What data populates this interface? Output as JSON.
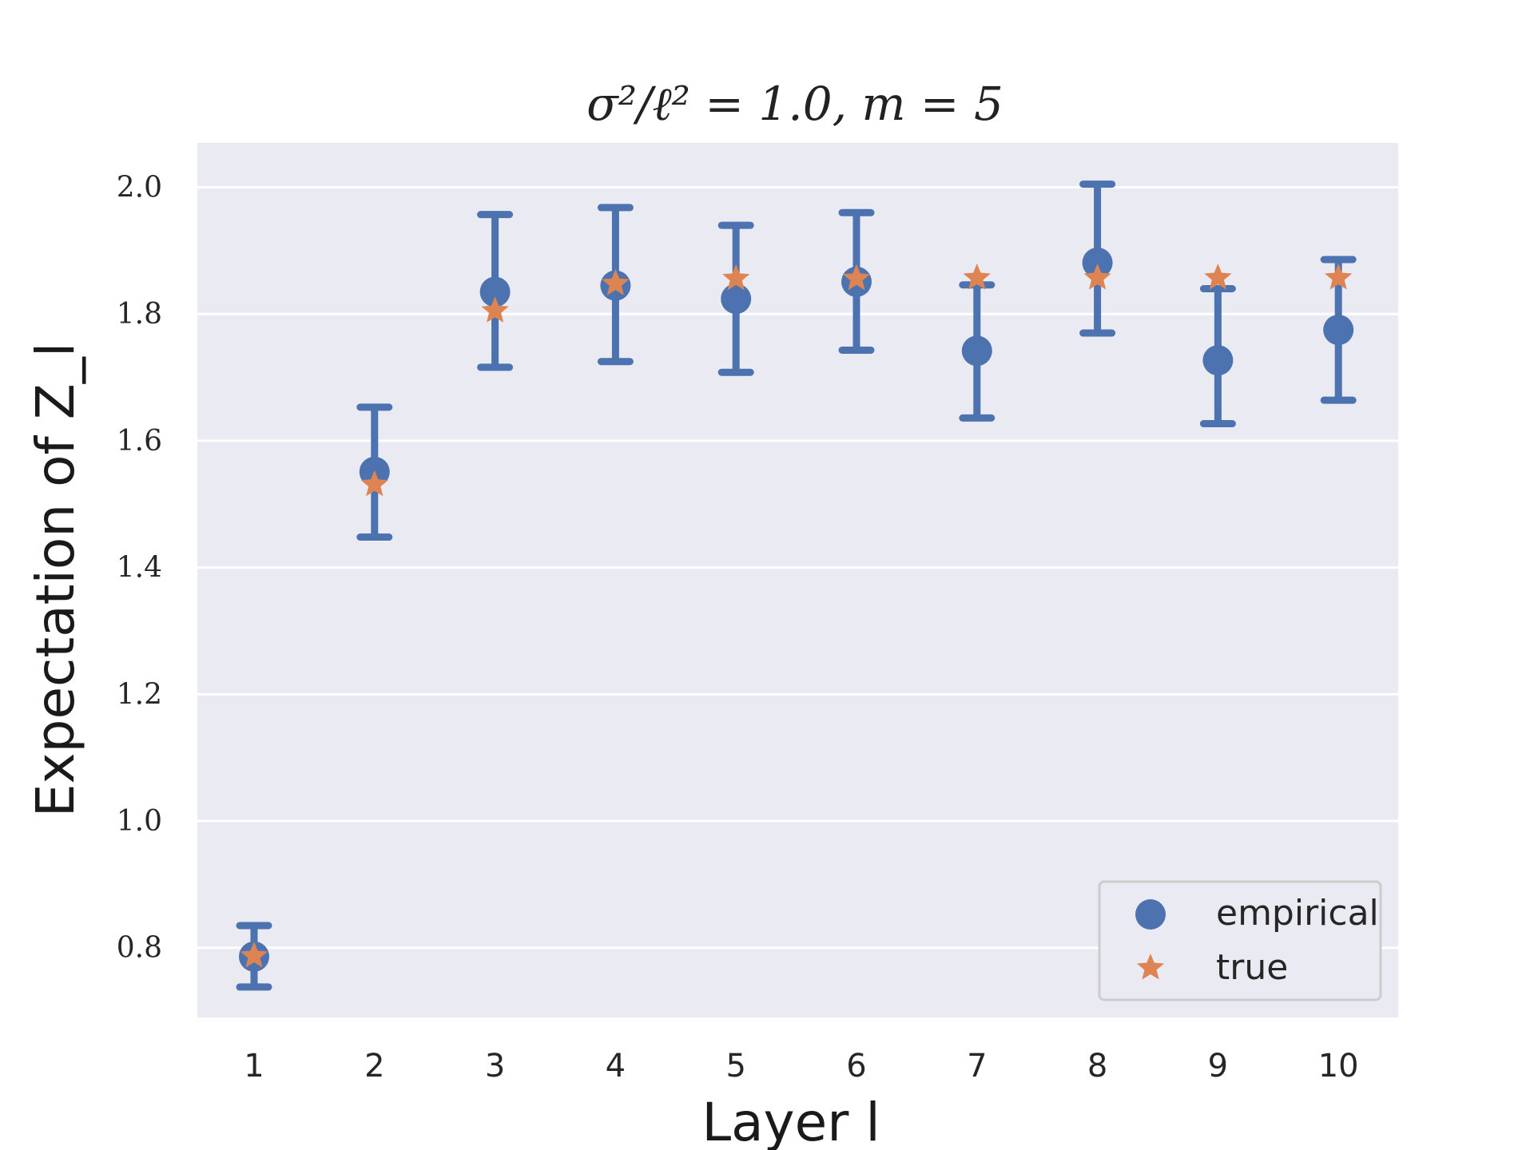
{
  "chart_data": {
    "type": "scatter",
    "title": "σ²/ℓ² = 1.0, m = 5",
    "xlabel": "Layer l",
    "ylabel": "Expectation of Z_l",
    "categories": [
      "1",
      "2",
      "3",
      "4",
      "5",
      "6",
      "7",
      "8",
      "9",
      "10"
    ],
    "ylim": [
      0.69,
      2.07
    ],
    "yticks": [
      "0.8",
      "1.0",
      "1.2",
      "1.4",
      "1.6",
      "1.8",
      "2.0"
    ],
    "grid": true,
    "legend_position": "lower-right",
    "series": [
      {
        "name": "empirical",
        "marker": "circle",
        "color": "#4c72b0",
        "values": [
          0.786,
          1.551,
          1.835,
          1.845,
          1.824,
          1.851,
          1.742,
          1.881,
          1.727,
          1.775
        ],
        "error_low": [
          0.738,
          1.448,
          1.716,
          1.725,
          1.708,
          1.743,
          1.636,
          1.77,
          1.627,
          1.664
        ],
        "error_high": [
          0.835,
          1.653,
          1.957,
          1.968,
          1.94,
          1.96,
          1.846,
          2.005,
          1.84,
          1.886
        ]
      },
      {
        "name": "true",
        "marker": "star",
        "color": "#dd8452",
        "values": [
          0.787,
          1.531,
          1.805,
          1.848,
          1.856,
          1.856,
          1.857,
          1.857,
          1.857,
          1.857
        ]
      }
    ]
  }
}
